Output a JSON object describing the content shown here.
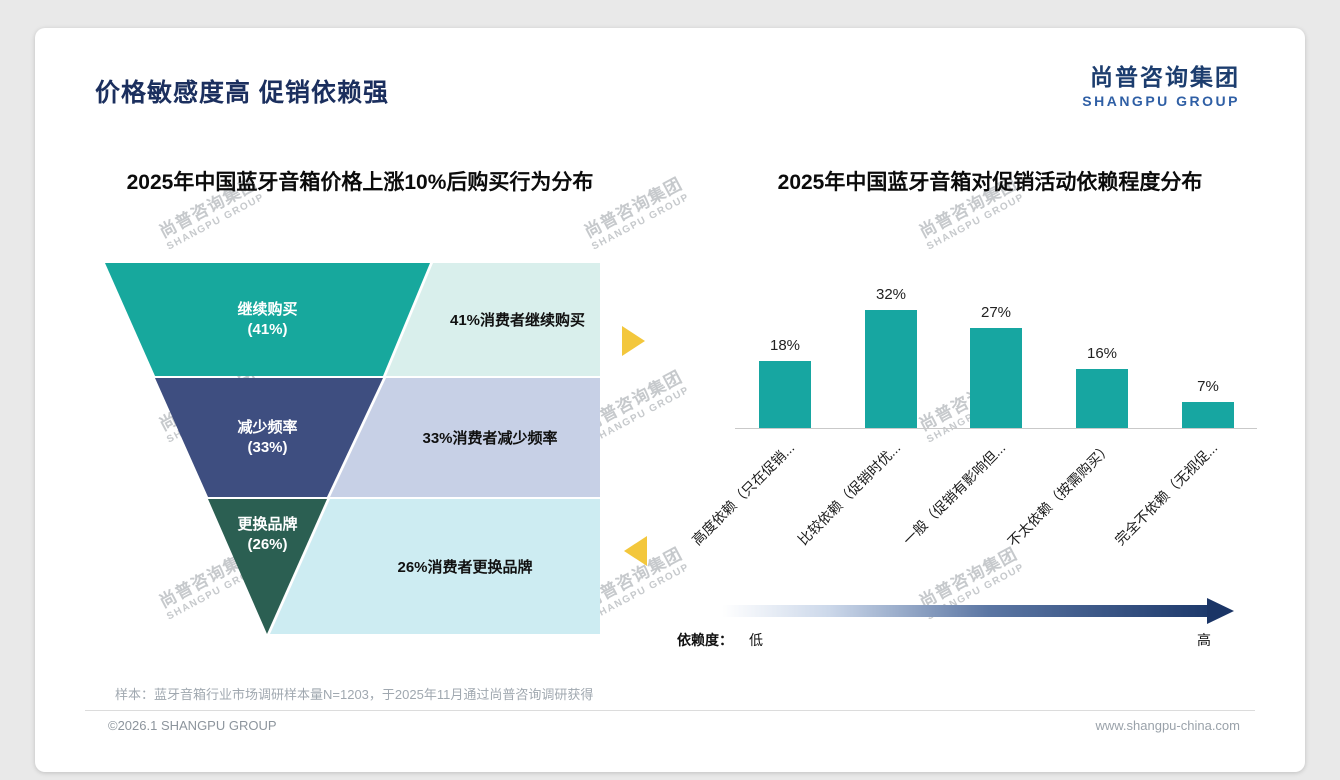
{
  "slide": {
    "title": "价格敏感度高 促销依赖强",
    "logo": {
      "cn": "尚普咨询集团",
      "en": "SHANGPU GROUP"
    },
    "watermark": {
      "cn": "尚普咨询集团",
      "en": "SHANGPU GROUP"
    },
    "sample_note": "样本：蓝牙音箱行业市场调研样本量N=1203，于2025年11月通过尚普咨询调研获得",
    "footer": {
      "copyright": "©2026.1 SHANGPU GROUP",
      "website": "www.shangpu-china.com"
    }
  },
  "colors": {
    "accent_yellow": "#f3c73c",
    "title_navy": "#1b2f5e",
    "bar_teal": "#17a6a1",
    "funnel_level_colors": [
      "#17a89d",
      "#3e4e80",
      "#2b5f52"
    ],
    "funnel_desc_bg_colors": [
      "#d9efec",
      "#c7d0e6",
      "#cdecf2"
    ],
    "dependency_arrow_dark": "#1e3a6c"
  },
  "chart_data": [
    {
      "type": "funnel",
      "title": "2025年中国蓝牙音箱价格上涨10%后购买行为分布",
      "categories": [
        "继续购买",
        "减少频率",
        "更换品牌"
      ],
      "values": [
        41,
        33,
        26
      ],
      "levels": [
        {
          "label": "继续购买",
          "value_label": "(41%)",
          "desc": "41%消费者继续购买"
        },
        {
          "label": "减少频率",
          "value_label": "(33%)",
          "desc": "33%消费者减少频率"
        },
        {
          "label": "更换品牌",
          "value_label": "(26%)",
          "desc": "26%消费者更换品牌"
        }
      ]
    },
    {
      "type": "bar",
      "title": "2025年中国蓝牙音箱对促销活动依赖程度分布",
      "categories": [
        "高度依赖（只在促销...",
        "比较依赖（促销时优...",
        "一般（促销有影响但...",
        "不太依赖（按需购买）",
        "完全不依赖（无视促..."
      ],
      "values": [
        18,
        32,
        27,
        16,
        7
      ],
      "value_labels": [
        "18%",
        "32%",
        "27%",
        "16%",
        "7%"
      ],
      "ylim": [
        0,
        35
      ],
      "grid": false,
      "legend": {
        "label": "依赖度：",
        "low": "低",
        "high": "高"
      }
    }
  ]
}
